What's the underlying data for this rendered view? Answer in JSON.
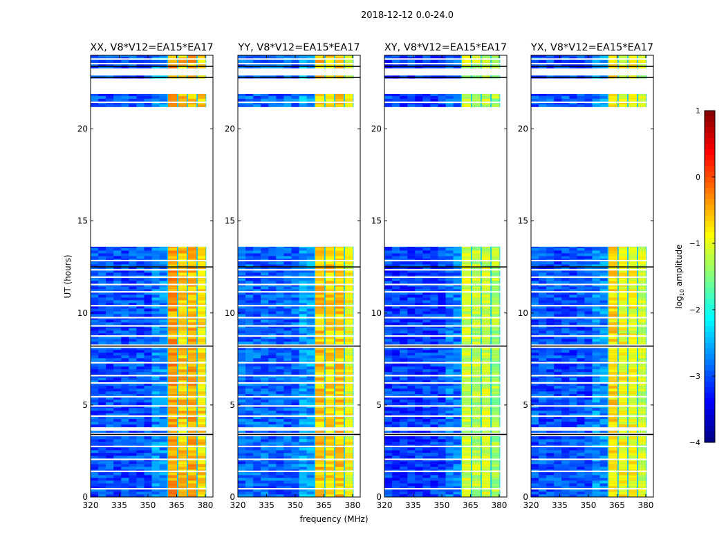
{
  "chart_data": {
    "type": "heatmap",
    "title": "2018-12-12 0.0-24.0",
    "xlabel": "frequency (MHz)",
    "ylabel": "UT (hours)",
    "xlim": [
      320,
      384
    ],
    "ylim": [
      0,
      24
    ],
    "xticks": [
      320,
      335,
      350,
      365,
      380
    ],
    "yticks": [
      0,
      5,
      10,
      15,
      20
    ],
    "colorbar": {
      "label_main": "log",
      "label_sub": "10",
      "label_rest": " amplitude",
      "range": [
        -4,
        1
      ],
      "ticks": [
        -4,
        -3,
        -2,
        -1,
        0,
        1
      ],
      "tick_labels": [
        "−4",
        "−3",
        "−2",
        "−1",
        "0",
        "1"
      ],
      "colormap": "jet"
    },
    "data_segments": [
      [
        0,
        3.3
      ],
      [
        3.5,
        3.6
      ],
      [
        3.8,
        8.1
      ],
      [
        8.3,
        13.6
      ],
      [
        21.2,
        21.9
      ],
      [
        22.75,
        22.9
      ],
      [
        23.3,
        24
      ]
    ],
    "flag_lines": [
      0.45,
      1.4,
      2.05,
      2.75,
      4.4,
      4.95,
      5.45,
      6.2,
      6.6,
      7.3,
      8.75,
      9.3,
      9.75,
      10.4,
      11.15,
      11.55,
      11.95,
      12.35,
      12.85,
      21.45,
      23.55,
      23.8
    ],
    "dark_lines": [
      3.4,
      8.2,
      12.5,
      22.8,
      23.4
    ],
    "band_channels": [
      [
        360.5,
        365.2
      ],
      [
        365.8,
        370.3
      ],
      [
        370.9,
        375.4
      ],
      [
        376.0,
        380.2
      ]
    ],
    "panels": [
      {
        "title": "XX, V8*V12=EA15*EA17",
        "background_level": -3.0,
        "band_levels": [
          -0.4,
          -0.6,
          -0.5,
          -0.7
        ]
      },
      {
        "title": "YY, V8*V12=EA15*EA17",
        "background_level": -2.9,
        "band_levels": [
          -0.6,
          -0.7,
          -0.6,
          -0.9
        ]
      },
      {
        "title": "XY, V8*V12=EA15*EA17",
        "background_level": -3.1,
        "band_levels": [
          -1.1,
          -1.2,
          -1.1,
          -1.3
        ]
      },
      {
        "title": "YX, V8*V12=EA15*EA17",
        "background_level": -3.0,
        "band_levels": [
          -0.7,
          -0.9,
          -0.9,
          -1.1
        ]
      }
    ]
  }
}
